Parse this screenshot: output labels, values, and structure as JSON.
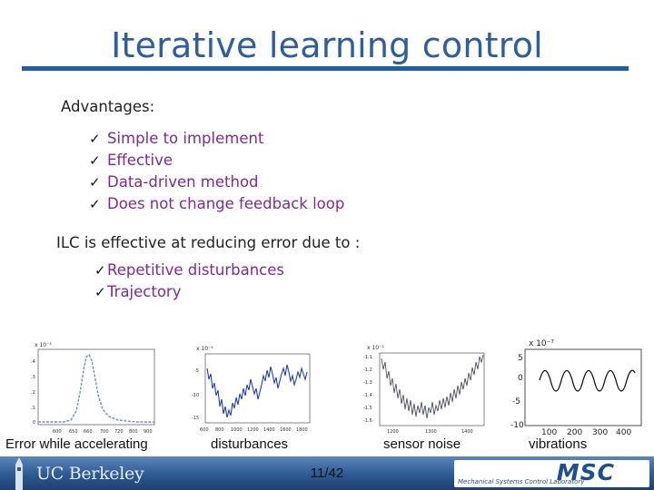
{
  "slide": {
    "title": "Iterative learning control",
    "advantages_heading": "Advantages:",
    "advantages": [
      "Simple to implement",
      "Effective",
      "Data-driven method",
      "Does not change feedback loop"
    ],
    "ilc_heading": "ILC is effective at reducing error due to :",
    "effective_for": [
      "Repetitive disturbances",
      "Trajectory"
    ],
    "check_glyph": "✓"
  },
  "plots": {
    "accel_error": {
      "caption": "Error while accelerating",
      "x_ticks": [
        "600",
        "650",
        "660",
        "700",
        "720",
        "800",
        "900"
      ],
      "y_ticks": [
        ".4",
        ".3",
        ".2",
        ".1",
        "0"
      ],
      "scale": "x 10⁻³"
    },
    "disturbances": {
      "caption": "disturbances",
      "x_ticks": [
        "600",
        "800",
        "1000",
        "1200",
        "1400",
        "1600",
        "1800"
      ],
      "y_ticks": [
        "-5",
        "-10",
        "-15"
      ],
      "scale": "x 10⁻³"
    },
    "sensor_noise": {
      "caption": "sensor noise",
      "x_ticks": [
        "1200",
        "1300",
        "1400"
      ],
      "y_ticks": [
        "-1.1",
        "-1.2",
        "-1.3",
        "-1.4",
        "-1.5",
        "-1.6"
      ],
      "scale": "x 10⁻³"
    },
    "vibrations": {
      "caption": "vibrations",
      "x_ticks": [
        "100",
        "200",
        "300",
        "400"
      ],
      "y_ticks": [
        "5",
        "0",
        "-5",
        "-10"
      ],
      "scale": "x 10⁻⁷"
    }
  },
  "footer": {
    "brand": "UC Berkeley",
    "page_number": "11/42",
    "lab_logo": "MSC",
    "lab_name": "Mechanical Systems Control Laboratory"
  }
}
